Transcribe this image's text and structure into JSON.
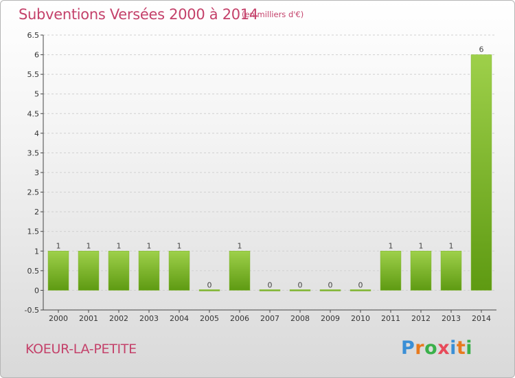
{
  "title": "Subventions Versées 2000 à 2014",
  "subtitle": "(en milliers d'€)",
  "commune": "KOEUR-LA-PETITE",
  "brand": {
    "text": "Proxiti",
    "letter_colors": [
      "#3a8fd6",
      "#e87a1e",
      "#3ab04a",
      "#e84a5a",
      "#3a8fd6",
      "#e87a1e",
      "#3ab04a"
    ]
  },
  "colors": {
    "title": "#c4416a",
    "bar_light": "#9ed04a",
    "bar_dark": "#5e9a12",
    "axis": "#444444",
    "grid": "#d0d0d0"
  },
  "chart_data": {
    "type": "bar",
    "title": "Subventions Versées 2000 à 2014",
    "subtitle": "(en milliers d'€)",
    "xlabel": "",
    "ylabel": "",
    "categories": [
      "2000",
      "2001",
      "2002",
      "2003",
      "2004",
      "2005",
      "2006",
      "2007",
      "2008",
      "2009",
      "2010",
      "2011",
      "2012",
      "2013",
      "2014"
    ],
    "values": [
      1,
      1,
      1,
      1,
      1,
      0,
      1,
      0,
      0,
      0,
      0,
      1,
      1,
      1,
      6
    ],
    "data_labels": [
      "1",
      "1",
      "1",
      "1",
      "1",
      "0",
      "1",
      "0",
      "0",
      "0",
      "0",
      "1",
      "1",
      "1",
      "6"
    ],
    "ylim": [
      -0.5,
      6.5
    ],
    "yticks": [
      "-0.5",
      "0",
      "0.5",
      "1",
      "1.5",
      "2",
      "2.5",
      "3",
      "3.5",
      "4",
      "4.5",
      "5",
      "5.5",
      "6",
      "6.5"
    ],
    "grid": true,
    "legend": "none"
  }
}
